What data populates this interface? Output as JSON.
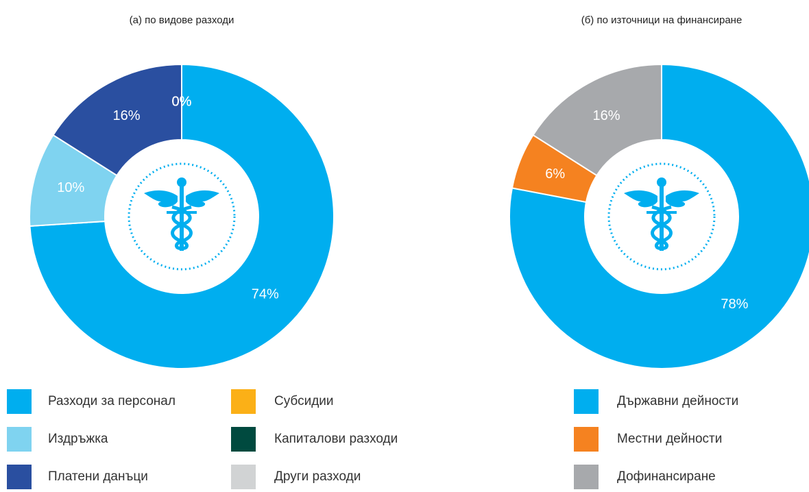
{
  "chart_data": [
    {
      "type": "donut",
      "title": "(а) по видове разходи",
      "categories": [
        "Разходи за персонал",
        "Издръжка",
        "Платени данъци",
        "Субсидии",
        "Капиталови разходи",
        "Други разходи"
      ],
      "values": [
        74,
        10,
        16,
        0,
        0,
        0
      ],
      "value_labels": [
        "74%",
        "10%",
        "16%",
        "0%",
        "0%",
        "0%"
      ],
      "colors": [
        "#00aeef",
        "#7fd3f0",
        "#2a4fa0",
        "#fbb017",
        "#004a3f",
        "#d1d3d4"
      ]
    },
    {
      "type": "donut",
      "title": "(б) по източници на финансиране",
      "categories": [
        "Държавни дейности",
        "Местни дейности",
        "Дофинансиране"
      ],
      "values": [
        78,
        6,
        16
      ],
      "value_labels": [
        "78%",
        "6%",
        "16%"
      ],
      "colors": [
        "#00aeef",
        "#f58220",
        "#a7a9ac"
      ]
    }
  ]
}
